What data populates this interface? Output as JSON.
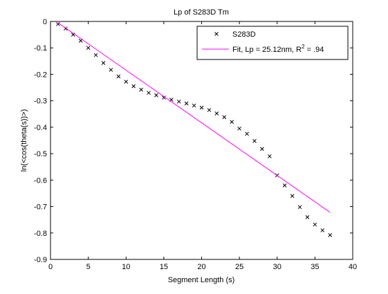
{
  "chart_data": {
    "type": "scatter",
    "title": "Lp of S283D Tm",
    "xlabel": "Segment Length (s)",
    "ylabel": "ln(<cos(theta(s))>)",
    "xlim": [
      0,
      40
    ],
    "ylim": [
      -0.9,
      0
    ],
    "xticks": [
      0,
      5,
      10,
      15,
      20,
      25,
      30,
      35,
      40
    ],
    "yticks": [
      0,
      -0.1,
      -0.2,
      -0.3,
      -0.4,
      -0.5,
      -0.6,
      -0.7,
      -0.8,
      -0.9
    ],
    "xtick_labels": [
      "0",
      "5",
      "10",
      "15",
      "20",
      "25",
      "30",
      "35",
      "40"
    ],
    "ytick_labels": [
      "0",
      "-0.1",
      "-0.2",
      "-0.3",
      "-0.4",
      "-0.5",
      "-0.6",
      "-0.7",
      "-0.8",
      "-0.9"
    ],
    "grid": false,
    "legend_position": "top-right",
    "legend": {
      "scatter_label": "S283D",
      "fit_label_main": "Fit, Lp = 25.12nm, R",
      "fit_label_sup": "2",
      "fit_label_tail": " = .94"
    },
    "series": [
      {
        "name": "S283D",
        "kind": "markers",
        "marker": "x",
        "color": "#000000",
        "x": [
          1,
          2,
          3,
          4,
          5,
          6,
          7,
          8,
          9,
          10,
          11,
          12,
          13,
          14,
          15,
          16,
          17,
          18,
          19,
          20,
          21,
          22,
          23,
          24,
          25,
          26,
          27,
          28,
          29,
          30,
          31,
          32,
          33,
          34,
          35,
          36,
          37
        ],
        "y": [
          -0.01,
          -0.027,
          -0.05,
          -0.073,
          -0.1,
          -0.127,
          -0.157,
          -0.183,
          -0.208,
          -0.228,
          -0.245,
          -0.258,
          -0.27,
          -0.279,
          -0.288,
          -0.296,
          -0.303,
          -0.31,
          -0.318,
          -0.326,
          -0.335,
          -0.348,
          -0.362,
          -0.38,
          -0.405,
          -0.425,
          -0.452,
          -0.482,
          -0.51,
          -0.582,
          -0.62,
          -0.66,
          -0.702,
          -0.74,
          -0.768,
          -0.79,
          -0.808
        ]
      },
      {
        "name": "Fit, Lp = 25.12nm, R2 = .94",
        "kind": "line",
        "color": "#ff00ff",
        "x": [
          1,
          37
        ],
        "y": [
          -0.005,
          -0.722
        ]
      }
    ]
  }
}
